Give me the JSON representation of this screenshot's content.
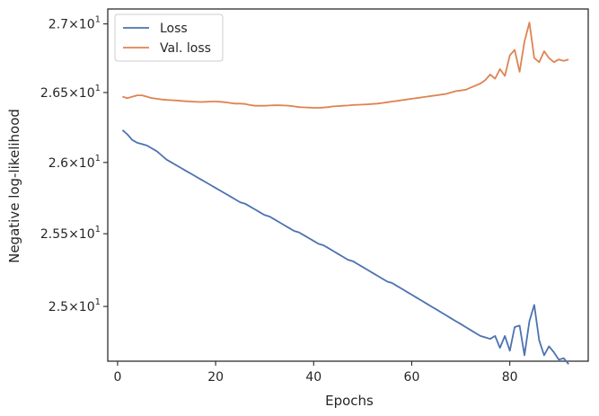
{
  "chart_data": {
    "type": "line",
    "title": "",
    "xlabel": "Epochs",
    "ylabel": "Negative log-likelihood",
    "xlim": [
      -2,
      96
    ],
    "ylim": [
      24.63,
      27.11
    ],
    "yscale": "log",
    "grid": false,
    "legend_placement": "top-left",
    "x_ticks": [
      0,
      20,
      40,
      60,
      80
    ],
    "y_ticks": [
      {
        "value": 25.0,
        "mantissa": "2.5",
        "exponent": "1"
      },
      {
        "value": 25.5,
        "mantissa": "2.55",
        "exponent": "1"
      },
      {
        "value": 26.0,
        "mantissa": "2.6",
        "exponent": "1"
      },
      {
        "value": 26.5,
        "mantissa": "2.65",
        "exponent": "1"
      },
      {
        "value": 27.0,
        "mantissa": "2.7",
        "exponent": "1"
      }
    ],
    "times_symbol": "×",
    "tick_base": "10",
    "series": [
      {
        "name": "Loss",
        "color": "#4c72b0",
        "x": [
          1,
          2,
          3,
          4,
          5,
          6,
          7,
          8,
          9,
          10,
          11,
          12,
          13,
          14,
          15,
          16,
          17,
          18,
          19,
          20,
          21,
          22,
          23,
          24,
          25,
          26,
          27,
          28,
          29,
          30,
          31,
          32,
          33,
          34,
          35,
          36,
          37,
          38,
          39,
          40,
          41,
          42,
          43,
          44,
          45,
          46,
          47,
          48,
          49,
          50,
          51,
          52,
          53,
          54,
          55,
          56,
          57,
          58,
          59,
          60,
          61,
          62,
          63,
          64,
          65,
          66,
          67,
          68,
          69,
          70,
          71,
          72,
          73,
          74,
          75,
          76,
          77,
          78,
          79,
          80,
          81,
          82,
          83,
          84,
          85,
          86,
          87,
          88,
          89,
          90,
          91,
          92
        ],
        "y": [
          26.23,
          26.2,
          26.16,
          26.14,
          26.13,
          26.12,
          26.1,
          26.08,
          26.05,
          26.02,
          26.0,
          25.98,
          25.96,
          25.94,
          25.92,
          25.9,
          25.88,
          25.86,
          25.84,
          25.82,
          25.8,
          25.78,
          25.76,
          25.74,
          25.72,
          25.71,
          25.69,
          25.67,
          25.65,
          25.63,
          25.62,
          25.6,
          25.58,
          25.56,
          25.54,
          25.52,
          25.51,
          25.49,
          25.47,
          25.45,
          25.43,
          25.42,
          25.4,
          25.38,
          25.36,
          25.34,
          25.32,
          25.31,
          25.29,
          25.27,
          25.25,
          25.23,
          25.21,
          25.19,
          25.17,
          25.16,
          25.14,
          25.12,
          25.1,
          25.08,
          25.06,
          25.04,
          25.02,
          25.0,
          24.98,
          24.96,
          24.94,
          24.92,
          24.9,
          24.88,
          24.86,
          24.84,
          24.82,
          24.8,
          24.79,
          24.78,
          24.8,
          24.72,
          24.8,
          24.7,
          24.86,
          24.87,
          24.67,
          24.9,
          25.01,
          24.77,
          24.67,
          24.73,
          24.69,
          24.64,
          24.65,
          24.61
        ]
      },
      {
        "name": "Val. loss",
        "color": "#dd8452",
        "x": [
          1,
          2,
          3,
          4,
          5,
          6,
          7,
          8,
          9,
          10,
          11,
          12,
          13,
          14,
          15,
          16,
          17,
          18,
          19,
          20,
          21,
          22,
          23,
          24,
          25,
          26,
          27,
          28,
          29,
          30,
          31,
          32,
          33,
          34,
          35,
          36,
          37,
          38,
          39,
          40,
          41,
          42,
          43,
          44,
          45,
          46,
          47,
          48,
          49,
          50,
          51,
          52,
          53,
          54,
          55,
          56,
          57,
          58,
          59,
          60,
          61,
          62,
          63,
          64,
          65,
          66,
          67,
          68,
          69,
          70,
          71,
          72,
          73,
          74,
          75,
          76,
          77,
          78,
          79,
          80,
          81,
          82,
          83,
          84,
          85,
          86,
          87,
          88,
          89,
          90,
          91,
          92
        ],
        "y": [
          26.47,
          26.46,
          26.47,
          26.48,
          26.48,
          26.47,
          26.46,
          26.455,
          26.45,
          26.447,
          26.445,
          26.443,
          26.44,
          26.437,
          26.435,
          26.433,
          26.432,
          26.433,
          26.435,
          26.435,
          26.433,
          26.43,
          26.425,
          26.42,
          26.42,
          26.418,
          26.41,
          26.405,
          26.405,
          26.405,
          26.407,
          26.408,
          26.408,
          26.407,
          26.405,
          26.4,
          26.395,
          26.393,
          26.392,
          26.39,
          26.39,
          26.392,
          26.395,
          26.4,
          26.402,
          26.405,
          26.407,
          26.41,
          26.412,
          26.413,
          26.415,
          26.418,
          26.42,
          26.425,
          26.43,
          26.435,
          26.44,
          26.445,
          26.45,
          26.455,
          26.46,
          26.465,
          26.47,
          26.475,
          26.48,
          26.485,
          26.49,
          26.5,
          26.51,
          26.515,
          26.52,
          26.535,
          26.55,
          26.565,
          26.59,
          26.63,
          26.6,
          26.67,
          26.62,
          26.77,
          26.81,
          26.65,
          26.87,
          27.01,
          26.75,
          26.72,
          26.8,
          26.75,
          26.72,
          26.74,
          26.73,
          26.74
        ]
      }
    ]
  }
}
